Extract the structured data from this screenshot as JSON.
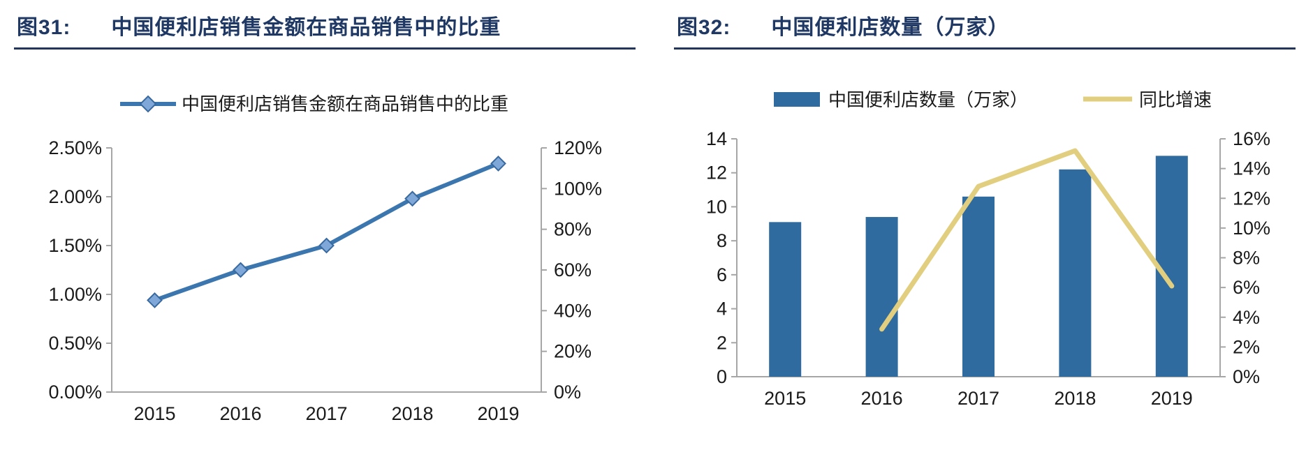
{
  "page": {
    "background": "#ffffff"
  },
  "colors": {
    "title_navy": "#1f3864",
    "header_rule": "#24355c",
    "axis_gray": "#a6a6a6",
    "tick_text": "#1a1a1a",
    "line_blue": "#3c76ae",
    "marker_fill": "#7fa8d9",
    "marker_stroke": "#38699f",
    "bar_blue": "#2f6b9e",
    "growth_tan": "#e2ce7f"
  },
  "charts": [
    {
      "figure_label": "图31:",
      "title": "中国便利店销售金额在商品销售中的比重",
      "legend": [
        {
          "label": "中国便利店销售金额在商品销售中的比重",
          "marker": "line-diamond-icon"
        }
      ],
      "chart_data": {
        "type": "line",
        "title": "中国便利店销售金额在商品销售中的比重",
        "categories": [
          "2015",
          "2016",
          "2017",
          "2018",
          "2019"
        ],
        "series": [
          {
            "name": "中国便利店销售金额在商品销售中的比重",
            "axis": "left",
            "values": [
              0.94,
              1.25,
              1.5,
              1.98,
              2.34
            ],
            "unit": "%"
          }
        ],
        "left_axis": {
          "min": 0,
          "max": 2.5,
          "tick_labels": [
            "2.50%",
            "2.00%",
            "1.50%",
            "1.00%",
            "0.50%",
            "0.00%"
          ]
        },
        "right_axis": {
          "min": 0,
          "max": 120,
          "tick_labels": [
            "120%",
            "100%",
            "80%",
            "60%",
            "40%",
            "20%",
            "0%"
          ]
        },
        "grid": "off",
        "legend_position": "top"
      }
    },
    {
      "figure_label": "图32:",
      "title": "中国便利店数量（万家）",
      "legend": [
        {
          "label": "中国便利店数量（万家）",
          "marker": "bar-swatch-icon"
        },
        {
          "label": "同比增速",
          "marker": "line-swatch-icon"
        }
      ],
      "chart_data": {
        "type": "bar",
        "title": "中国便利店数量（万家）",
        "categories": [
          "2015",
          "2016",
          "2017",
          "2018",
          "2019"
        ],
        "series": [
          {
            "name": "中国便利店数量（万家）",
            "type": "bar",
            "axis": "left",
            "values": [
              9.1,
              9.4,
              10.6,
              12.2,
              13.0
            ],
            "unit": "万家"
          },
          {
            "name": "同比增速",
            "type": "line",
            "axis": "right",
            "values": [
              null,
              3.2,
              12.8,
              15.2,
              6.1
            ],
            "unit": "%"
          }
        ],
        "left_axis": {
          "min": 0,
          "max": 14,
          "tick_labels": [
            "14",
            "12",
            "10",
            "8",
            "6",
            "4",
            "2",
            "0"
          ]
        },
        "right_axis": {
          "min": 0,
          "max": 16,
          "tick_labels": [
            "16%",
            "14%",
            "12%",
            "10%",
            "8%",
            "6%",
            "4%",
            "2%",
            "0%"
          ]
        },
        "grid": "off",
        "legend_position": "top"
      }
    }
  ]
}
